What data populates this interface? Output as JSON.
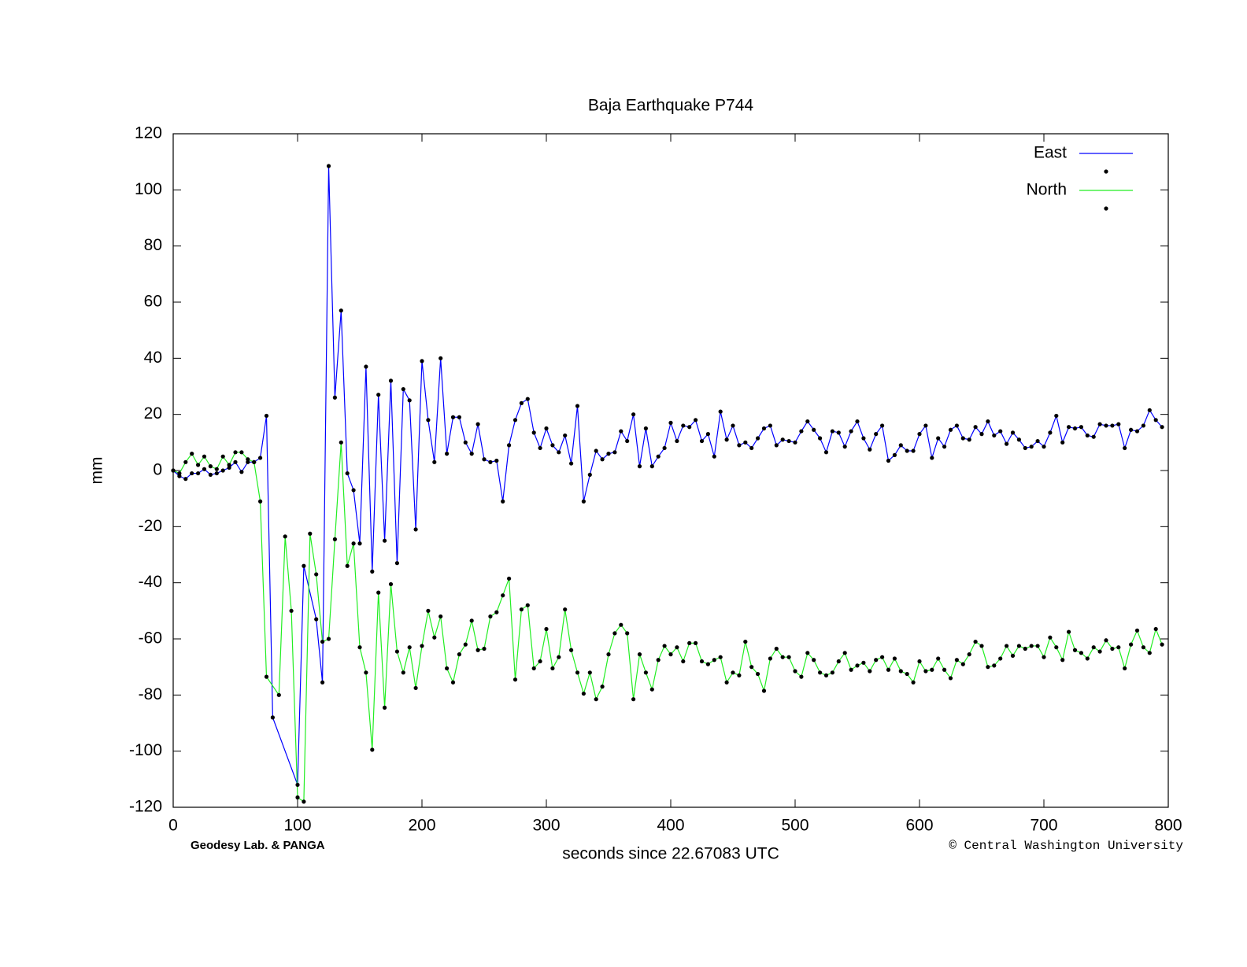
{
  "chart_data": {
    "type": "line",
    "title": "Baja Earthquake P744",
    "x_label": "seconds since 22.67083 UTC",
    "y_label": "mm",
    "credit_left": "Geodesy Lab. & PANGA",
    "credit_right": "© Central Washington University",
    "xlim": [
      0,
      800
    ],
    "xticks": [
      0,
      100,
      200,
      300,
      400,
      500,
      600,
      700,
      800
    ],
    "ylim": [
      -120,
      120
    ],
    "yticks": [
      -120,
      -100,
      -80,
      -60,
      -40,
      -20,
      0,
      20,
      40,
      60,
      80,
      100,
      120
    ],
    "legend": "top-right",
    "point_color": "#000000",
    "series": [
      {
        "name": "East",
        "color": "#0000ff",
        "x": [
          0,
          5,
          10,
          15,
          20,
          25,
          30,
          35,
          40,
          45,
          50,
          55,
          60,
          65,
          70,
          75,
          80,
          100,
          105,
          115,
          120,
          125,
          130,
          135,
          140,
          145,
          150,
          155,
          160,
          165,
          170,
          175,
          180,
          185,
          190,
          195,
          200,
          205,
          210,
          215,
          220,
          225,
          230,
          235,
          240,
          245,
          250,
          255,
          260,
          265,
          270,
          275,
          280,
          285,
          290,
          295,
          300,
          305,
          310,
          315,
          320,
          325,
          330,
          335,
          340,
          345,
          350,
          355,
          360,
          365,
          370,
          375,
          380,
          385,
          390,
          395,
          400,
          405,
          410,
          415,
          420,
          425,
          430,
          435,
          440,
          445,
          450,
          455,
          460,
          465,
          470,
          475,
          480,
          485,
          490,
          495,
          500,
          505,
          510,
          515,
          520,
          525,
          530,
          535,
          540,
          545,
          550,
          555,
          560,
          565,
          570,
          575,
          580,
          585,
          590,
          595,
          600,
          605,
          610,
          615,
          620,
          625,
          630,
          635,
          640,
          645,
          650,
          655,
          660,
          665,
          670,
          675,
          680,
          685,
          690,
          695,
          700,
          705,
          710,
          715,
          720,
          725,
          730,
          735,
          740,
          745,
          750,
          755,
          760,
          765,
          770,
          775,
          780,
          785,
          790,
          795
        ],
        "values": [
          0,
          -2,
          -3,
          -1,
          -1,
          0.5,
          -1.5,
          -1,
          0,
          1,
          3,
          -0.5,
          3,
          3,
          4.5,
          19.5,
          -88,
          -112,
          -34,
          -53,
          -75.5,
          108.5,
          26,
          57,
          -1,
          -7,
          -26,
          37,
          -36,
          27,
          -25,
          32,
          -33,
          29,
          25,
          -21,
          39,
          18,
          3,
          40,
          6,
          19,
          19,
          10,
          6,
          16.5,
          4,
          3,
          3.5,
          -11,
          9,
          18,
          24,
          25.5,
          13.5,
          8,
          15,
          9,
          6.5,
          12.5,
          2.5,
          23,
          -11,
          -1.5,
          7,
          4,
          6,
          6.5,
          14,
          10.5,
          20,
          1.5,
          15,
          1.5,
          5,
          8,
          17,
          10.5,
          16,
          15.5,
          18,
          10.5,
          13,
          5,
          21,
          11,
          16,
          9,
          10,
          8,
          11.5,
          15,
          16,
          9,
          11,
          10.5,
          10,
          14,
          17.5,
          14.5,
          11.5,
          6.5,
          14,
          13.5,
          8.5,
          14,
          17.5,
          11.5,
          7.5,
          13,
          16,
          3.5,
          5.5,
          9,
          7,
          7,
          13,
          16,
          4.5,
          11.5,
          8.5,
          14.5,
          16,
          11.5,
          11,
          15.5,
          13,
          17.5,
          12.5,
          14,
          9.5,
          13.5,
          11,
          8,
          8.5,
          10.5,
          8.5,
          13.5,
          19.5,
          10,
          15.5,
          15,
          15.5,
          12.5,
          12,
          16.5,
          16,
          16,
          16.5,
          8,
          14.5,
          14,
          16,
          21.5,
          18,
          15.5
        ]
      },
      {
        "name": "North",
        "color": "#22ee22",
        "x": [
          0,
          5,
          10,
          15,
          20,
          25,
          30,
          35,
          40,
          45,
          50,
          55,
          60,
          65,
          70,
          75,
          85,
          90,
          95,
          100,
          105,
          110,
          115,
          120,
          125,
          130,
          135,
          140,
          145,
          150,
          155,
          160,
          165,
          170,
          175,
          180,
          185,
          190,
          195,
          200,
          205,
          210,
          215,
          220,
          225,
          230,
          235,
          240,
          245,
          250,
          255,
          260,
          265,
          270,
          275,
          280,
          285,
          290,
          295,
          300,
          305,
          310,
          315,
          320,
          325,
          330,
          335,
          340,
          345,
          350,
          355,
          360,
          365,
          370,
          375,
          380,
          385,
          390,
          395,
          400,
          405,
          410,
          415,
          420,
          425,
          430,
          435,
          440,
          445,
          450,
          455,
          460,
          465,
          470,
          475,
          480,
          485,
          490,
          495,
          500,
          505,
          510,
          515,
          520,
          525,
          530,
          535,
          540,
          545,
          550,
          555,
          560,
          565,
          570,
          575,
          580,
          585,
          590,
          595,
          600,
          605,
          610,
          615,
          620,
          625,
          630,
          635,
          640,
          645,
          650,
          655,
          660,
          665,
          670,
          675,
          680,
          685,
          690,
          695,
          700,
          705,
          710,
          715,
          720,
          725,
          730,
          735,
          740,
          745,
          750,
          755,
          760,
          765,
          770,
          775,
          780,
          785,
          790,
          795
        ],
        "values": [
          0,
          -1,
          3,
          6,
          2,
          5,
          1.5,
          0.5,
          5,
          2,
          6.5,
          6.5,
          4,
          3,
          -11,
          -73.5,
          -80,
          -23.5,
          -50,
          -116.5,
          -118,
          -22.5,
          -37,
          -61,
          -60,
          -24.5,
          10,
          -34,
          -26,
          -63,
          -72,
          -99.5,
          -43.5,
          -84.5,
          -40.5,
          -64.5,
          -72,
          -63,
          -77.5,
          -62.5,
          -50,
          -59.5,
          -52,
          -70.5,
          -75.5,
          -65.5,
          -62,
          -53.5,
          -64,
          -63.5,
          -52,
          -50.5,
          -44.5,
          -38.5,
          -74.5,
          -49.5,
          -48,
          -70.5,
          -68,
          -56.5,
          -70.5,
          -66.5,
          -49.5,
          -64,
          -72,
          -79.5,
          -72,
          -81.5,
          -77,
          -65.5,
          -58,
          -55,
          -58,
          -81.5,
          -65.5,
          -72,
          -78,
          -67.5,
          -62.5,
          -65.5,
          -63,
          -68,
          -61.5,
          -61.5,
          -68,
          -69,
          -67.5,
          -66.5,
          -75.5,
          -72,
          -73,
          -61,
          -70,
          -72.5,
          -78.5,
          -67,
          -63.5,
          -66.5,
          -66.5,
          -71.5,
          -73.5,
          -65,
          -67.5,
          -72,
          -73,
          -72,
          -68,
          -65,
          -71,
          -69.5,
          -68.5,
          -71.5,
          -67.5,
          -66.5,
          -71,
          -67,
          -71.5,
          -72.5,
          -75.5,
          -68,
          -71.5,
          -71,
          -67,
          -71,
          -74,
          -67.5,
          -69,
          -65.5,
          -61,
          -62.5,
          -70,
          -69.5,
          -67,
          -62.5,
          -66,
          -62.5,
          -63.5,
          -62.5,
          -62.5,
          -66.5,
          -59.5,
          -63,
          -67.5,
          -57.5,
          -64,
          -65,
          -67,
          -63,
          -64.5,
          -60.5,
          -63.5,
          -63,
          -70.5,
          -62,
          -57,
          -63,
          -65,
          -56.5,
          -62
        ]
      }
    ]
  }
}
